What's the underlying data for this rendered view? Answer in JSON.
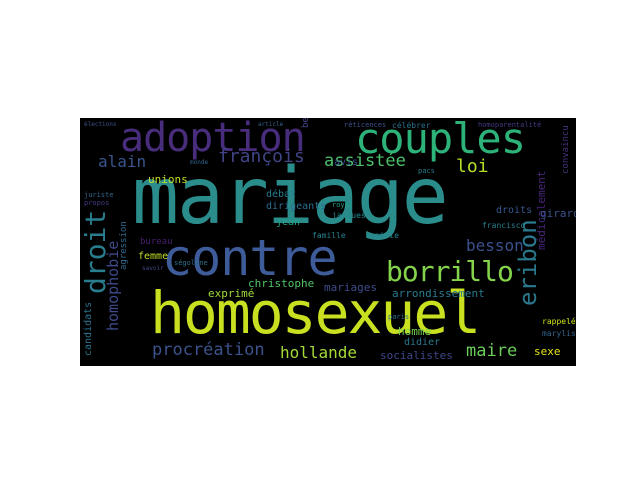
{
  "words": [
    {
      "text": "mariage",
      "color": "#2b8c8c"
    },
    {
      "text": "homosexuel",
      "color": "#c8e020"
    },
    {
      "text": "contre",
      "color": "#3e5c9a"
    },
    {
      "text": "adoption",
      "color": "#472d7b"
    },
    {
      "text": "couples",
      "color": "#2db37a"
    },
    {
      "text": "borrillo",
      "color": "#84d44b"
    },
    {
      "text": "droit",
      "color": "#287d8e"
    },
    {
      "text": "eribon",
      "color": "#2a788e"
    },
    {
      "text": "procréation",
      "color": "#3b528b"
    },
    {
      "text": "hollande",
      "color": "#a5db36"
    },
    {
      "text": "françois",
      "color": "#414487"
    },
    {
      "text": "homophobie",
      "color": "#3e4a89"
    },
    {
      "text": "maire",
      "color": "#6ccd5a"
    },
    {
      "text": "assistée",
      "color": "#4cc26c"
    },
    {
      "text": "alain",
      "color": "#39568c"
    },
    {
      "text": "loi",
      "color": "#b5de2b"
    },
    {
      "text": "besson",
      "color": "#3b518b"
    },
    {
      "text": "christophe",
      "color": "#52c569"
    },
    {
      "text": "mariages",
      "color": "#3e4c8a"
    },
    {
      "text": "arrondissement",
      "color": "#2a7b8e"
    },
    {
      "text": "exprimé",
      "color": "#9fda3a"
    },
    {
      "text": "socialistes",
      "color": "#3f4788"
    },
    {
      "text": "médicalement",
      "color": "#482677"
    },
    {
      "text": "girard",
      "color": "#3b528b"
    },
    {
      "text": "unions",
      "color": "#c2df23"
    },
    {
      "text": "femme",
      "color": "#c0df25"
    },
    {
      "text": "homme",
      "color": "#7ad151"
    },
    {
      "text": "didier",
      "color": "#2a788e"
    },
    {
      "text": "sexe",
      "color": "#e5e419"
    },
    {
      "text": "candidats",
      "color": "#2c718e"
    },
    {
      "text": "agression",
      "color": "#31688e"
    },
    {
      "text": "débat",
      "color": "#277f8e"
    },
    {
      "text": "dirigeants",
      "color": "#2f6c8e"
    },
    {
      "text": "jean",
      "color": "#20a386"
    },
    {
      "text": "avis",
      "color": "#3a548c"
    },
    {
      "text": "besoin",
      "color": "#414487"
    },
    {
      "text": "droits",
      "color": "#38588c"
    },
    {
      "text": "bureau",
      "color": "#481f70"
    },
    {
      "text": "francisco",
      "color": "#277f8e"
    },
    {
      "text": "jacques",
      "color": "#238a8d"
    },
    {
      "text": "famille",
      "color": "#26828e"
    },
    {
      "text": "mairie",
      "color": "#24868e"
    },
    {
      "text": "célébrer",
      "color": "#2c728e"
    },
    {
      "text": "réticences",
      "color": "#3b528b"
    },
    {
      "text": "homoparentalité",
      "color": "#443a83"
    },
    {
      "text": "convaincu",
      "color": "#46327e"
    },
    {
      "text": "marylise",
      "color": "#33628d"
    },
    {
      "text": "rappelé",
      "color": "#d0e11c"
    },
    {
      "text": "ségolène",
      "color": "#2d708e"
    },
    {
      "text": "royal",
      "color": "#1fa088"
    },
    {
      "text": "paris",
      "color": "#2e6f8e"
    },
    {
      "text": "pacs",
      "color": "#287c8e"
    },
    {
      "text": "juriste",
      "color": "#31688e"
    },
    {
      "text": "propos",
      "color": "#433d84"
    },
    {
      "text": "article",
      "color": "#34618d"
    },
    {
      "text": "savoir",
      "color": "#404588"
    },
    {
      "text": "monde",
      "color": "#32648e"
    },
    {
      "text": "élections",
      "color": "#3b528b"
    }
  ]
}
